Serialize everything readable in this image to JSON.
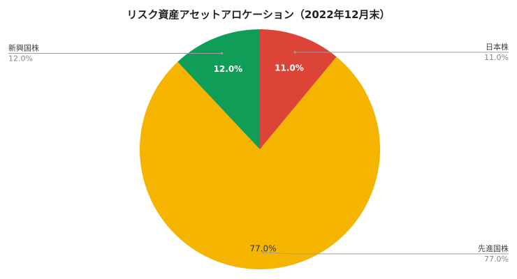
{
  "chart_data": {
    "type": "pie",
    "title": "リスク資産アセットアロケーション（2022年12月末）",
    "slices": [
      {
        "name": "日本株",
        "value": 11.0,
        "label": "11.0%",
        "color": "#db4437"
      },
      {
        "name": "先進国株",
        "value": 77.0,
        "label": "77.0%",
        "color": "#f4b400"
      },
      {
        "name": "新興国株",
        "value": 12.0,
        "label": "12.0%",
        "color": "#0f9d58"
      }
    ],
    "start_angle": "12 o'clock",
    "direction": "clockwise"
  }
}
